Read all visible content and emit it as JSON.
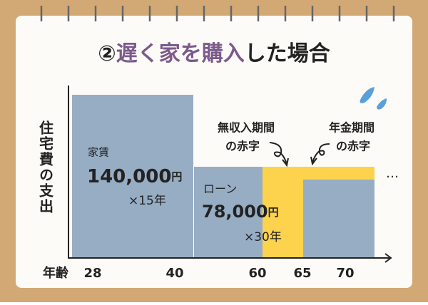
{
  "title": {
    "prefix": "②",
    "highlight": "遅く家を購入",
    "suffix": "した場合"
  },
  "y_label": "住宅費の支出",
  "x_label": "年齢",
  "ages": [
    "28",
    "40",
    "60",
    "65",
    "70"
  ],
  "rent": {
    "label": "家賃",
    "amount": "140,000",
    "unit": "円",
    "duration": "×15年"
  },
  "loan": {
    "label": "ローン",
    "amount": "78,000",
    "unit": "円",
    "duration": "×30年"
  },
  "deficit_no_income": [
    "無収入期間",
    "の赤字"
  ],
  "deficit_pension": [
    "年金期間",
    "の赤字"
  ],
  "continuation": "…"
}
